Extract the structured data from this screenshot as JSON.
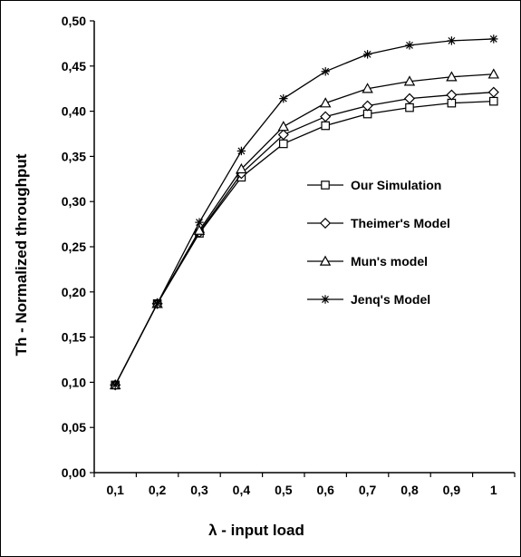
{
  "chart_data": {
    "type": "line",
    "xlabel": "λ - input load",
    "ylabel": "Th - Normalized throughput",
    "x": [
      0.1,
      0.2,
      0.3,
      0.4,
      0.5,
      0.6,
      0.7,
      0.8,
      0.9,
      1.0
    ],
    "x_tick_labels": [
      "0,1",
      "0,2",
      "0,3",
      "0,4",
      "0,5",
      "0,6",
      "0,7",
      "0,8",
      "0,9",
      "1"
    ],
    "ylim": [
      0,
      0.5
    ],
    "y_ticks": [
      0,
      0.05,
      0.1,
      0.15,
      0.2,
      0.25,
      0.3,
      0.35,
      0.4,
      0.45,
      0.5
    ],
    "y_tick_labels": [
      "0,00",
      "0,05",
      "0,10",
      "0,15",
      "0,20",
      "0,25",
      "0,30",
      "0,35",
      "0,40",
      "0,45",
      "0,50"
    ],
    "grid": false,
    "legend_position": "right-middle",
    "series": [
      {
        "name": "Our Simulation",
        "marker": "square",
        "values": [
          0.097,
          0.187,
          0.265,
          0.327,
          0.364,
          0.384,
          0.397,
          0.404,
          0.409,
          0.411
        ]
      },
      {
        "name": "Theimer's Model",
        "marker": "diamond",
        "values": [
          0.097,
          0.187,
          0.266,
          0.331,
          0.374,
          0.394,
          0.406,
          0.414,
          0.418,
          0.421
        ]
      },
      {
        "name": "Mun's model",
        "marker": "triangle",
        "values": [
          0.097,
          0.187,
          0.268,
          0.336,
          0.383,
          0.409,
          0.425,
          0.433,
          0.438,
          0.441
        ]
      },
      {
        "name": "Jenq's Model",
        "marker": "star",
        "values": [
          0.097,
          0.187,
          0.277,
          0.356,
          0.414,
          0.444,
          0.463,
          0.473,
          0.478,
          0.48
        ]
      }
    ],
    "colors": {
      "line": "#000000",
      "background": "#ffffff"
    }
  }
}
